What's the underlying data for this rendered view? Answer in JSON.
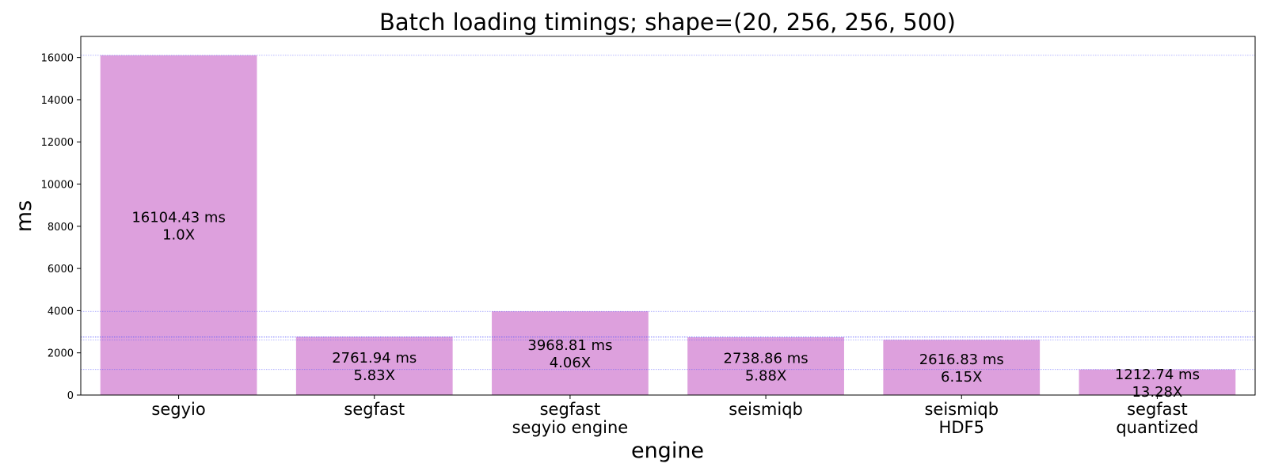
{
  "chart_data": {
    "type": "bar",
    "title": "Batch loading timings; shape=(20, 256, 256, 500)",
    "xlabel": "engine",
    "ylabel": "ms",
    "ylim": [
      0,
      17000
    ],
    "yticks": [
      0,
      2000,
      4000,
      6000,
      8000,
      10000,
      12000,
      14000,
      16000
    ],
    "grid": "horizontal dotted reference lines at each bar value",
    "categories": [
      [
        "segyio"
      ],
      [
        "segfast"
      ],
      [
        "segfast",
        "segyio engine"
      ],
      [
        "seismiqb"
      ],
      [
        "seismiqb",
        "HDF5"
      ],
      [
        "segfast",
        "quantized"
      ]
    ],
    "values": [
      16104.43,
      2761.94,
      3968.81,
      2738.86,
      2616.83,
      1212.74
    ],
    "data_labels": [
      [
        "16104.43 ms",
        "1.0X"
      ],
      [
        "2761.94 ms",
        "5.83X"
      ],
      [
        "3968.81 ms",
        "4.06X"
      ],
      [
        "2738.86 ms",
        "5.88X"
      ],
      [
        "2616.83 ms",
        "6.15X"
      ],
      [
        "1212.74 ms",
        "13.28X"
      ]
    ],
    "colors": {
      "bar": "#dda0dd",
      "reference_line": "#4d4dff"
    }
  }
}
